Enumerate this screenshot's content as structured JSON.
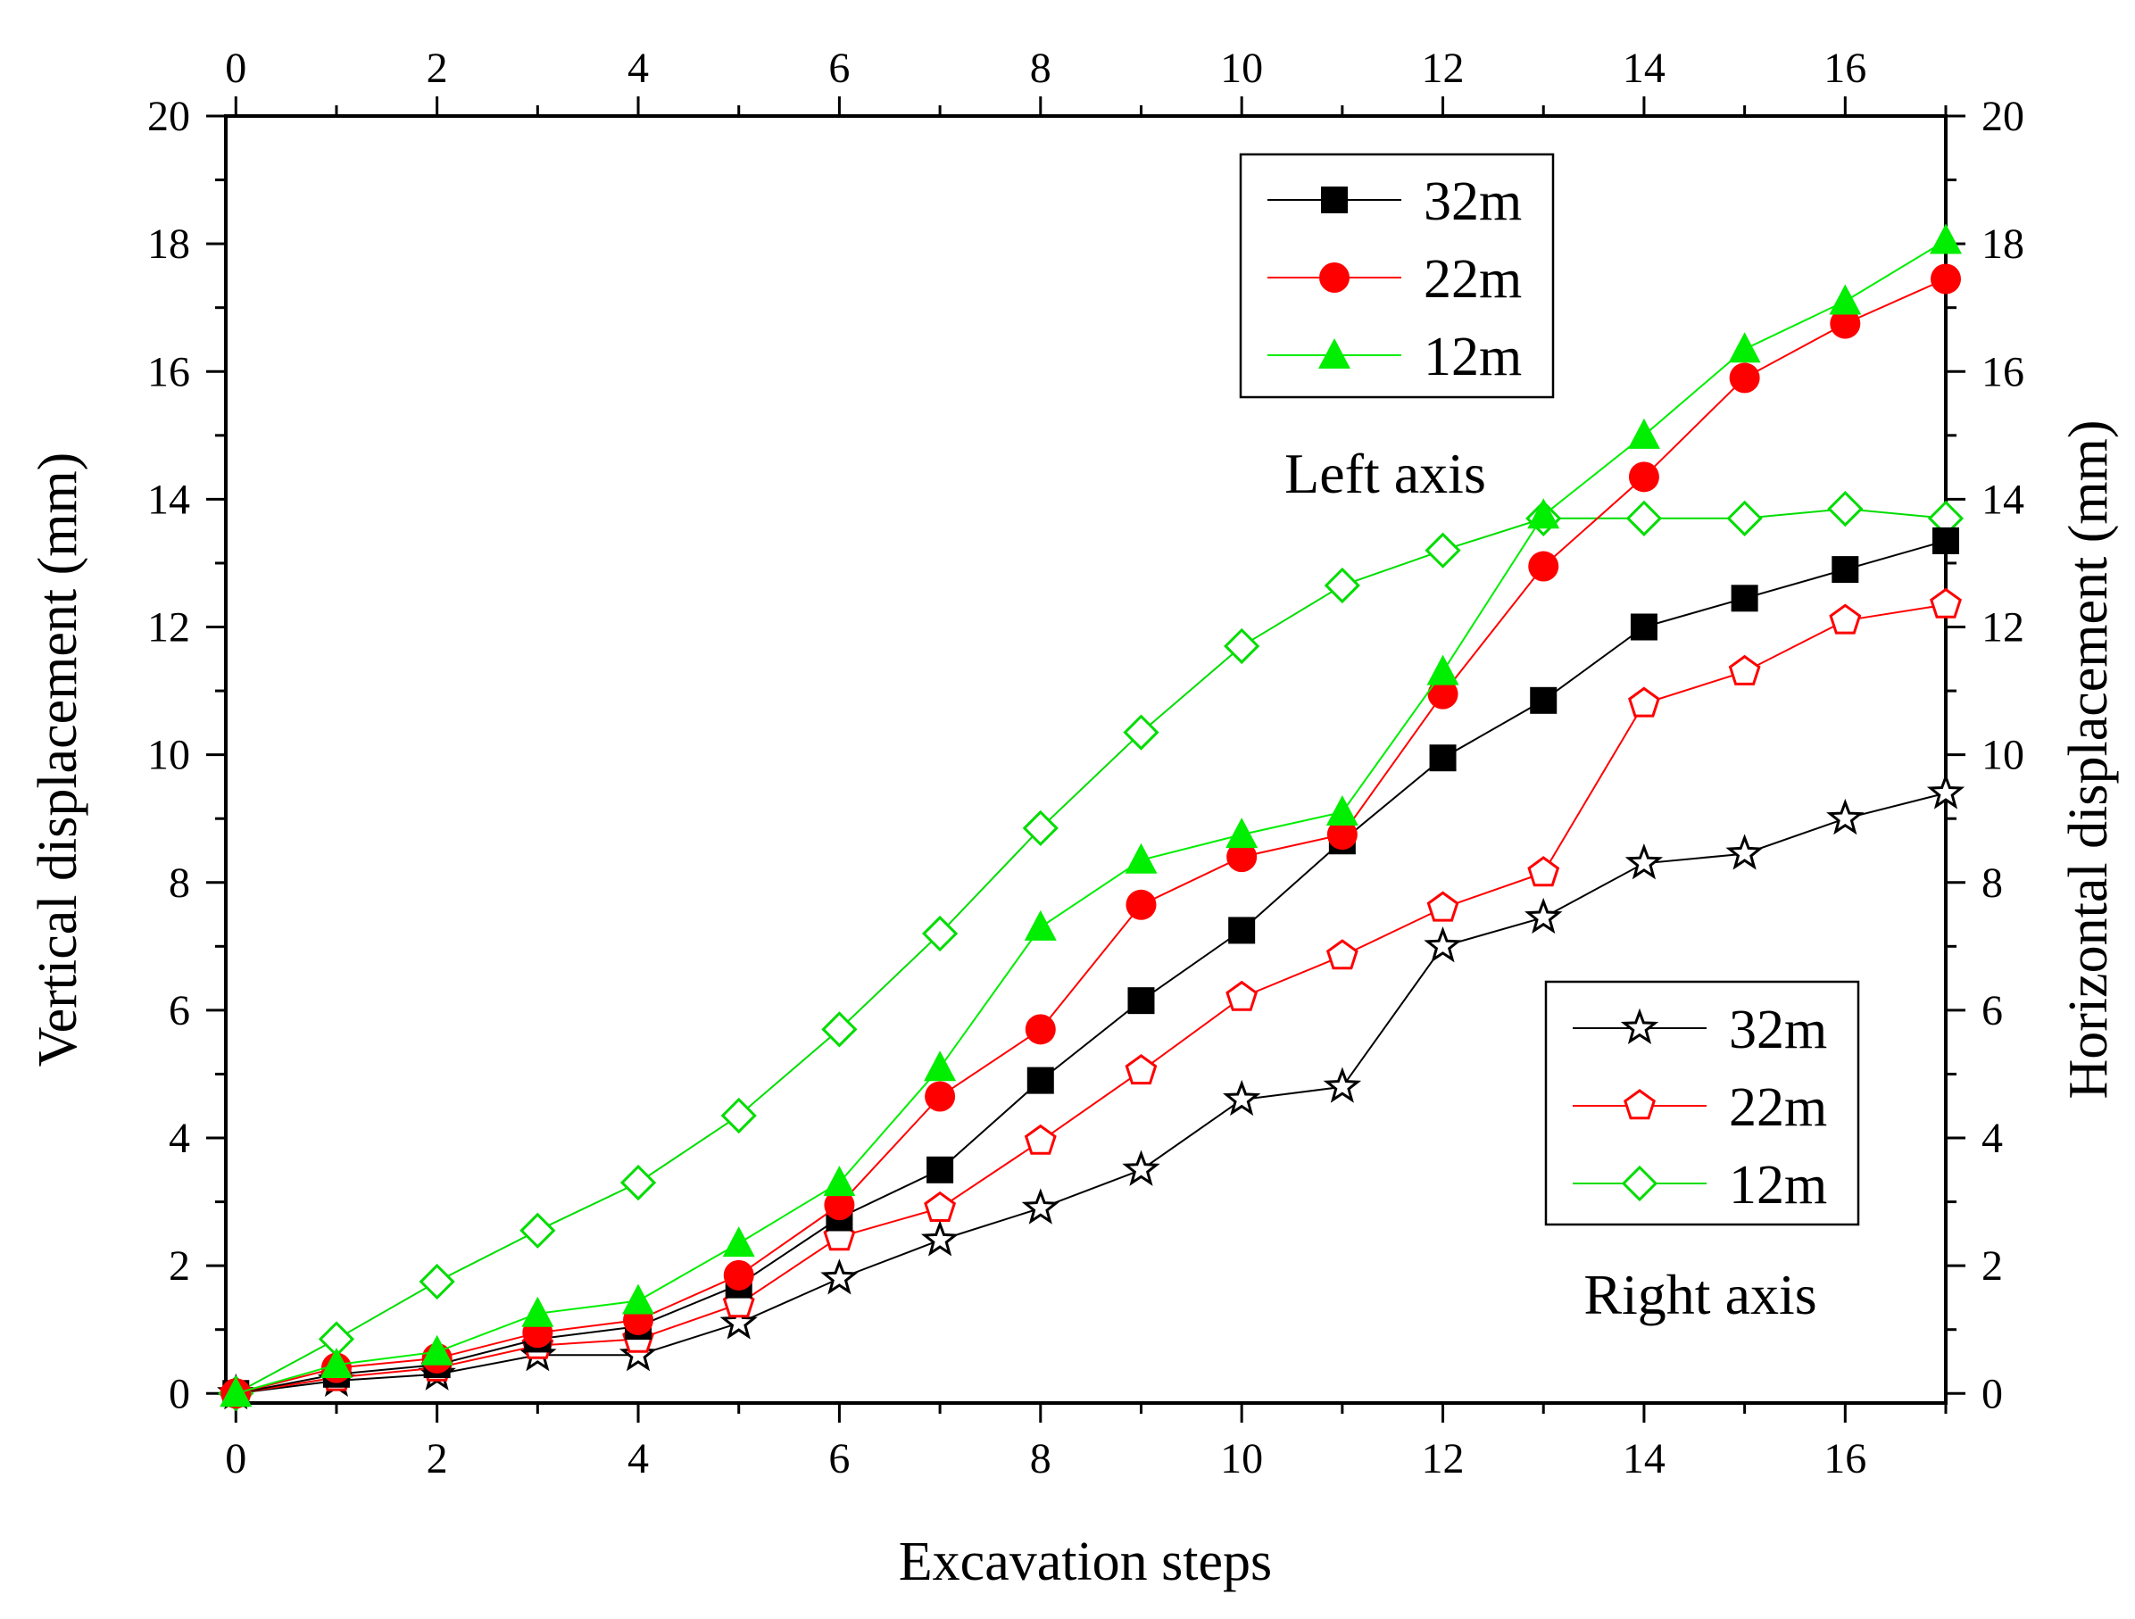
{
  "chart_data": {
    "type": "line",
    "xlabel": "Excavation steps",
    "ylabel_left": "Vertical  displacement (mm)",
    "ylabel_right": "Horizontal displacement (mm)",
    "xlim": [
      -0.1,
      17
    ],
    "ylim": [
      -0.15,
      20
    ],
    "x_ticks": [
      0,
      2,
      4,
      6,
      8,
      10,
      12,
      14,
      16
    ],
    "y_ticks": [
      0,
      2,
      4,
      6,
      8,
      10,
      12,
      14,
      16,
      18,
      20
    ],
    "x": [
      0,
      1,
      2,
      3,
      4,
      5,
      6,
      7,
      8,
      9,
      10,
      11,
      12,
      13,
      14,
      15,
      16,
      17
    ],
    "left_axis_note": "Left axis",
    "right_axis_note": "Right axis",
    "left_series": [
      {
        "name": "32m",
        "color": "#000000",
        "marker": "filled-square",
        "values": [
          0,
          0.3,
          0.45,
          0.85,
          1.05,
          1.7,
          2.75,
          3.5,
          4.9,
          6.15,
          7.25,
          8.65,
          9.95,
          10.85,
          12.0,
          12.45,
          12.9,
          13.35
        ]
      },
      {
        "name": "22m",
        "color": "#ff0000",
        "marker": "filled-circle",
        "values": [
          0,
          0.4,
          0.55,
          0.95,
          1.15,
          1.85,
          2.95,
          4.65,
          5.7,
          7.65,
          8.4,
          8.75,
          10.95,
          12.95,
          14.35,
          15.9,
          16.75,
          17.45
        ]
      },
      {
        "name": "12m",
        "color": "#00ee00",
        "marker": "filled-triangle",
        "values": [
          0,
          0.45,
          0.65,
          1.25,
          1.45,
          2.35,
          3.3,
          5.1,
          7.3,
          8.35,
          8.75,
          9.1,
          11.3,
          13.75,
          15.0,
          16.35,
          17.1,
          18.05
        ]
      }
    ],
    "right_series": [
      {
        "name": "32m",
        "color": "#000000",
        "marker": "open-star",
        "values": [
          0,
          0.2,
          0.3,
          0.6,
          0.6,
          1.1,
          1.8,
          2.4,
          2.9,
          3.5,
          4.6,
          4.8,
          7.0,
          7.45,
          8.3,
          8.45,
          9.0,
          9.4
        ]
      },
      {
        "name": "22m",
        "color": "#ff0000",
        "marker": "open-pentagon",
        "values": [
          0,
          0.25,
          0.4,
          0.75,
          0.85,
          1.4,
          2.45,
          2.9,
          3.95,
          5.05,
          6.2,
          6.85,
          7.6,
          8.15,
          10.8,
          11.3,
          12.1,
          12.35
        ]
      },
      {
        "name": "12m",
        "color": "#00dd00",
        "marker": "open-diamond",
        "values": [
          0,
          0.85,
          1.75,
          2.55,
          3.3,
          4.35,
          5.7,
          7.2,
          8.85,
          10.35,
          11.7,
          12.65,
          13.2,
          13.7,
          13.7,
          13.7,
          13.85,
          13.7
        ]
      }
    ],
    "legend_left_position": "top-right",
    "legend_right_position": "bottom-right",
    "grid": false
  }
}
